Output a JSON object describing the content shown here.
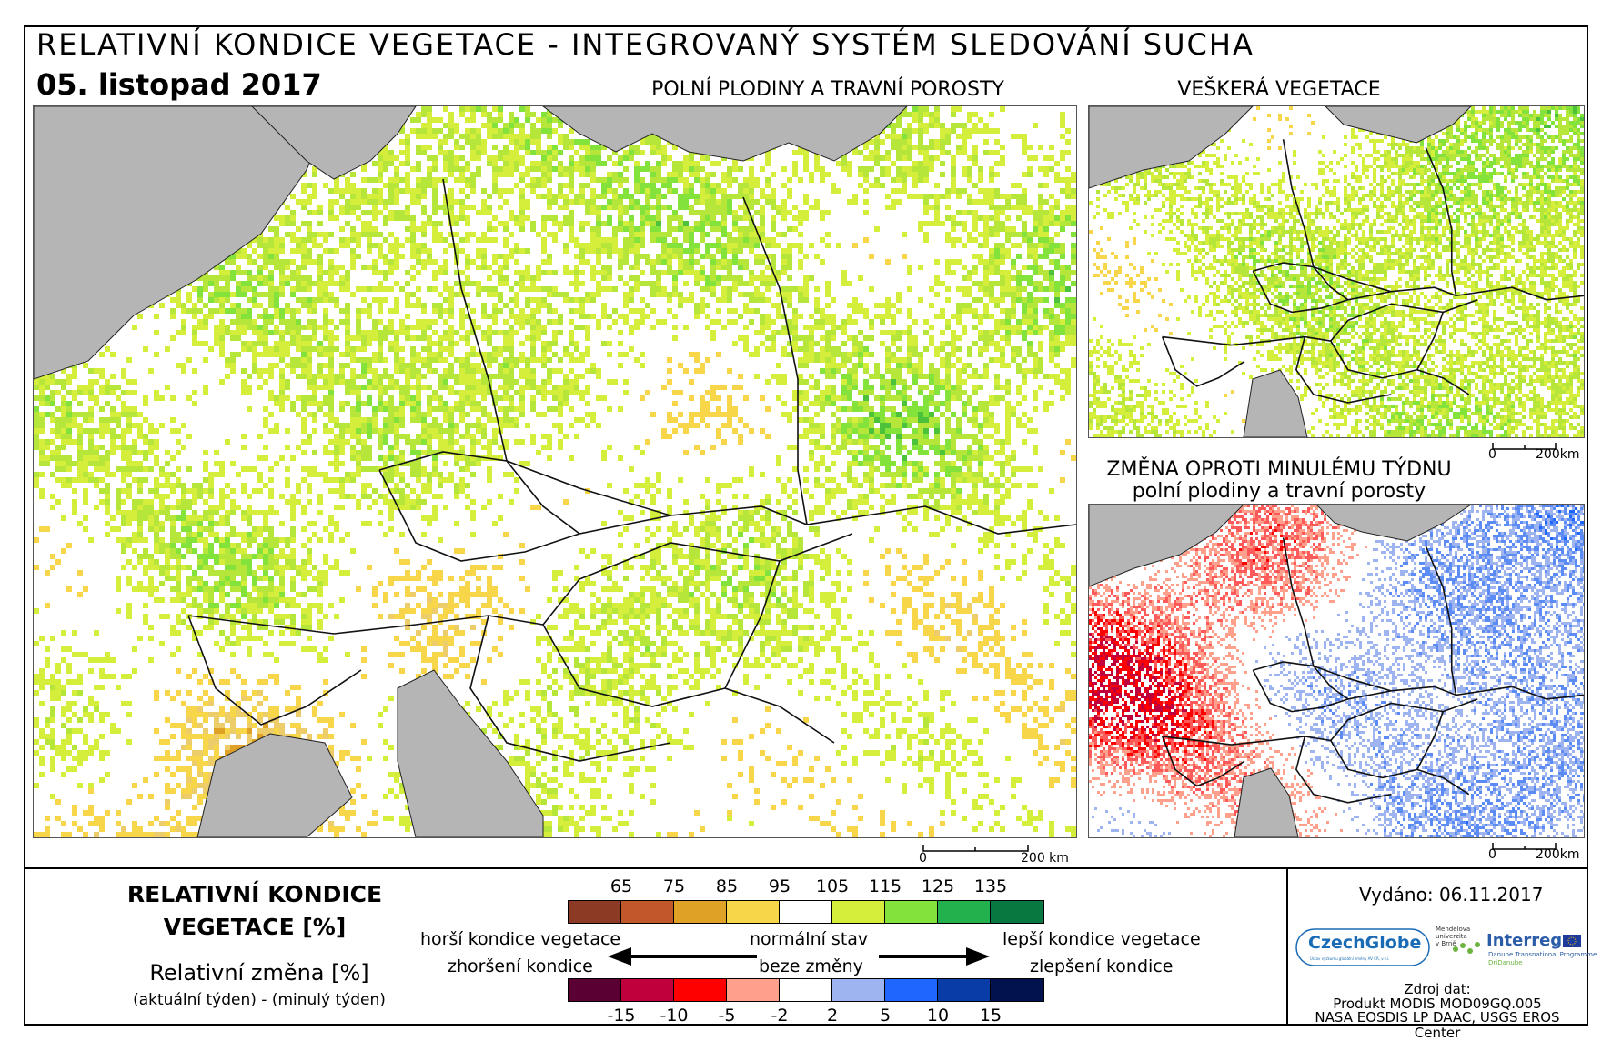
{
  "header": {
    "title": "RELATIVNÍ KONDICE VEGETACE - INTEGROVANÝ SYSTÉM SLEDOVÁNÍ SUCHA",
    "date": "05. listopad 2017"
  },
  "maps": {
    "main": {
      "subtitle": "POLNÍ PLODINY A TRAVNÍ POROSTY"
    },
    "top_right": {
      "subtitle": "VEŠKERÁ VEGETACE"
    },
    "bottom_right": {
      "subtitle_line1": "ZMĚNA OPROTI MINULÉMU TÝDNU",
      "subtitle_line2": "polní plodiny a travní porosty"
    }
  },
  "scale_bar": {
    "start": "0",
    "end": "200 km",
    "end_short": "200km"
  },
  "legend": {
    "title_line1": "RELATIVNÍ KONDICE",
    "title_line2": "VEGETACE [%]",
    "change_title": "Relativní změna [%]",
    "change_note": "(aktuální týden) - (minulý týden)",
    "condition_ticks": [
      "65",
      "75",
      "85",
      "95",
      "105",
      "115",
      "125",
      "135"
    ],
    "condition_colors": [
      "#8c3a24",
      "#c2582a",
      "#e0a127",
      "#f7d64a",
      "#ffffff",
      "#d5ee3b",
      "#84e33a",
      "#22b14c",
      "#087840"
    ],
    "change_ticks": [
      "-15",
      "-10",
      "-5",
      "-2",
      "2",
      "5",
      "10",
      "15"
    ],
    "change_colors": [
      "#5a0033",
      "#c0003d",
      "#ff0000",
      "#ffa08c",
      "#ffffff",
      "#9db4f0",
      "#1f66ff",
      "#0a3ca8",
      "#02124e"
    ],
    "worse_label": "horší kondice vegetace",
    "normal_label": "normální stav",
    "better_label": "lepší kondice vegetace",
    "deterioration_label": "zhoršení kondice",
    "no_change_label": "beze změny",
    "improvement_label": "zlepšení kondice"
  },
  "info": {
    "issued": "Vydáno: 06.11.2017",
    "source_title": "Zdroj dat:",
    "source_line1": "Produkt MODIS MOD09GQ.005",
    "source_line2": "NASA EOSDIS LP DAAC, USGS EROS Center"
  },
  "logos": {
    "czechglobe": "CzechGlobe",
    "czechglobe_tag": "Ústav výzkumu globální změny AV ČR, v.v.i.",
    "mendel_line1": "Mendelova",
    "mendel_line2": "univerzita",
    "mendel_line3": "v Brně",
    "interreg": "Interreg",
    "interreg_tag": "Danube Transnational Programme",
    "interreg_sub": "DriDanube"
  }
}
